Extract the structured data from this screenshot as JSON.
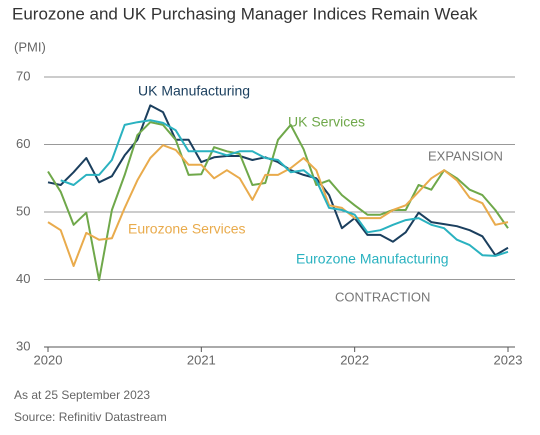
{
  "chart_data": {
    "type": "line",
    "title": "Eurozone and UK Purchasing Manager Indices Remain Weak",
    "y_label": "(PMI)",
    "x": [
      2020,
      2020.083,
      2020.167,
      2020.25,
      2020.333,
      2020.417,
      2020.5,
      2020.583,
      2020.667,
      2020.75,
      2020.833,
      2020.917,
      2021,
      2021.083,
      2021.167,
      2021.25,
      2021.333,
      2021.417,
      2021.5,
      2021.583,
      2021.667,
      2021.75,
      2021.833,
      2021.917,
      2022,
      2022.083,
      2022.167,
      2022.25,
      2022.333,
      2022.417,
      2022.5,
      2022.583,
      2022.667,
      2022.75,
      2022.833,
      2022.917,
      2023
    ],
    "series": [
      {
        "name": "UK Manufacturing",
        "color": "#1b3f5e",
        "values": [
          54.4,
          54,
          55.9,
          58,
          54.4,
          55.3,
          58.4,
          60.7,
          65.8,
          64.8,
          60.7,
          60.7,
          57.4,
          58.1,
          58.3,
          58.3,
          57.7,
          58.1,
          57.4,
          56.2,
          55.5,
          55,
          52.5,
          47.6,
          49.1,
          46.6,
          46.6,
          45.6,
          47,
          49.9,
          48.5,
          48.2,
          47.9,
          47.3,
          46.4,
          43.6,
          44.7
        ]
      },
      {
        "name": "UK Services",
        "color": "#6fa84a",
        "values": [
          56,
          53,
          48.1,
          49.9,
          39.9,
          50.3,
          55.5,
          61.4,
          63.3,
          62.9,
          60.7,
          55.5,
          55.6,
          59.6,
          59,
          58.6,
          54,
          54.3,
          60.7,
          62.9,
          59.3,
          54,
          54.7,
          52.5,
          51,
          49.6,
          49.6,
          50.3,
          50.3,
          54,
          53.3,
          56.2,
          55,
          53.3,
          52.5,
          50.3,
          47.6
        ]
      },
      {
        "name": "Eurozone Services",
        "color": "#e9ab4c",
        "values": [
          48.5,
          47.3,
          42,
          46.9,
          45.9,
          46.1,
          50.6,
          54.7,
          58,
          59.9,
          59.2,
          57,
          57,
          55,
          56.2,
          55,
          51.8,
          55.5,
          55.5,
          56.5,
          58,
          56.2,
          51,
          50.6,
          49.1,
          49.1,
          49.1,
          50.3,
          51,
          53,
          55,
          56.2,
          54.7,
          52.1,
          51.3,
          48.1,
          48.5
        ]
      },
      {
        "name": "Eurozone Manufacturing",
        "color": "#2ab2c0",
        "values": [
          null,
          54.7,
          54,
          55.5,
          55.5,
          57.7,
          62.9,
          63.3,
          63.6,
          63.2,
          62.1,
          59,
          59,
          59,
          58.4,
          59,
          59,
          58,
          57.7,
          55.9,
          56.2,
          54.7,
          50.6,
          50.3,
          49.6,
          47,
          47.3,
          48.1,
          48.8,
          49.1,
          48.1,
          47.6,
          45.9,
          45.1,
          43.6,
          43.5,
          44.1
        ]
      }
    ],
    "annotations": [
      "EXPANSION",
      "CONTRACTION"
    ],
    "xlim": [
      2020,
      2023
    ],
    "xticks": [
      2020,
      2021,
      2022,
      2023
    ],
    "ylim": [
      30,
      70
    ],
    "yticks": [
      30,
      40,
      50,
      60,
      70
    ],
    "grid": true,
    "notes": [
      "As at 25 September 2023",
      "Source: Refinitiv Datastream"
    ]
  }
}
